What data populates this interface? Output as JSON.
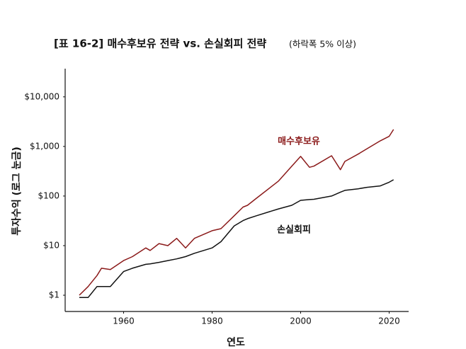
{
  "chart_data": {
    "type": "line",
    "title": "[표 16-2] 매수후보유 전략 vs. 손실회피 전략",
    "subtitle": "(하락폭 5% 이상)",
    "x_label": "연도",
    "y_label": "투자수익 (로그 눈금)",
    "log_scale": true,
    "grid": false,
    "xlim": [
      1946.8,
      2024.4
    ],
    "ylim": [
      0.47,
      37000
    ],
    "xticks": [
      1960,
      1980,
      2000,
      2020
    ],
    "yticks": [
      {
        "value": 1,
        "label": "$1"
      },
      {
        "value": 10,
        "label": "$10"
      },
      {
        "value": 100,
        "label": "$100"
      },
      {
        "value": 1000,
        "label": "$1,000"
      },
      {
        "value": 10000,
        "label": "$10,000"
      }
    ],
    "x": [
      1950,
      1952,
      1954,
      1955,
      1957,
      1960,
      1962,
      1965,
      1966,
      1968,
      1970,
      1972,
      1974,
      1976,
      1980,
      1982,
      1985,
      1987,
      1988,
      1990,
      1995,
      1998,
      2000,
      2002,
      2003,
      2007,
      2009,
      2010,
      2013,
      2015,
      2018,
      2020,
      2021
    ],
    "series": [
      {
        "name": "매수후보유",
        "color": "#8b1a1a",
        "values": [
          1,
          1.5,
          2.5,
          3.5,
          3.3,
          5,
          6,
          9,
          8,
          11,
          10,
          14,
          9,
          14,
          20,
          22,
          40,
          60,
          65,
          90,
          200,
          400,
          630,
          380,
          400,
          650,
          340,
          500,
          700,
          900,
          1300,
          1600,
          2200
        ]
      },
      {
        "name": "손실회피",
        "color": "#111111",
        "values": [
          0.9,
          0.9,
          1.5,
          1.5,
          1.5,
          3,
          3.5,
          4.2,
          4.3,
          4.6,
          5,
          5.4,
          6,
          7,
          9,
          12,
          25,
          32,
          35,
          40,
          55,
          65,
          82,
          85,
          86,
          100,
          120,
          130,
          140,
          150,
          160,
          190,
          213
        ]
      }
    ]
  }
}
